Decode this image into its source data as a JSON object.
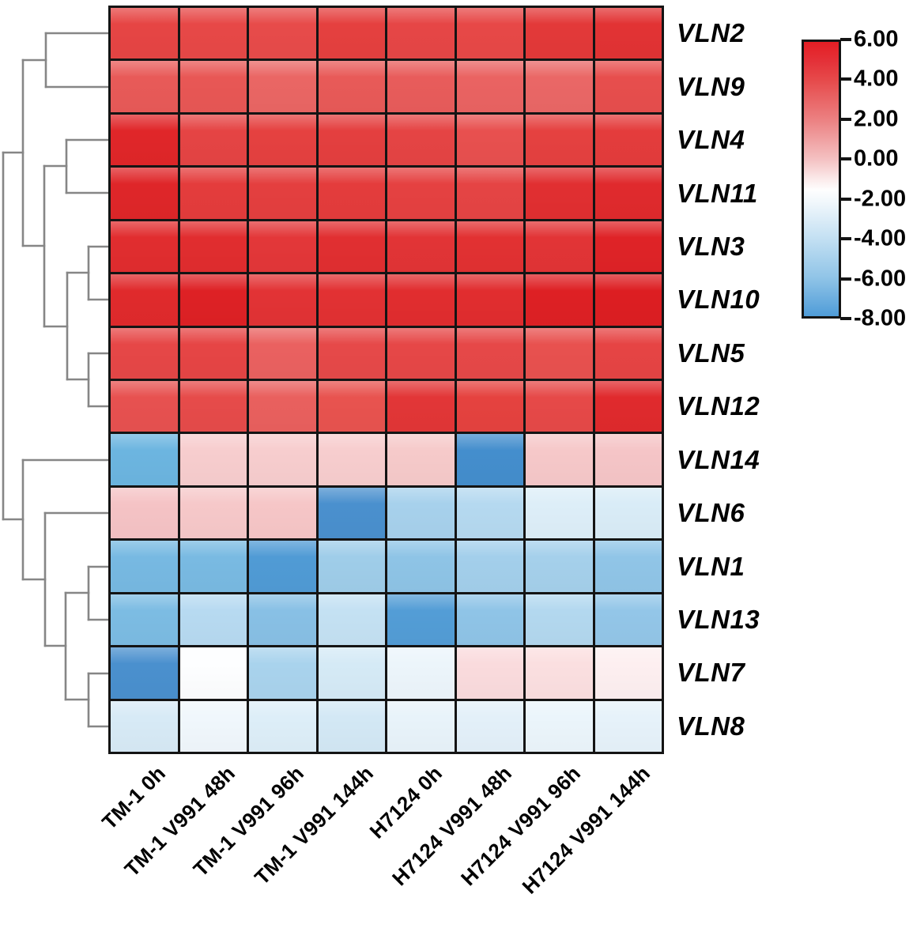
{
  "figure": {
    "background": "#ffffff",
    "grid_color": "#141414",
    "dendrogram_color": "#868686"
  },
  "chart_data": {
    "type": "heatmap",
    "title": "",
    "rows": [
      "VLN2",
      "VLN9",
      "VLN4",
      "VLN11",
      "VLN3",
      "VLN10",
      "VLN5",
      "VLN12",
      "VLN14",
      "VLN6",
      "VLN1",
      "VLN13",
      "VLN7",
      "VLN8"
    ],
    "columns": [
      "TM-1 0h",
      "TM-1 V991 48h",
      "TM-1 V991 96h",
      "TM-1 V991 144h",
      "H7124 0h",
      "H7124 V991 48h",
      "H7124 V991 96h",
      "H7124 V991 144h"
    ],
    "values": [
      [
        4.0,
        3.9,
        3.8,
        4.1,
        4.0,
        3.9,
        4.4,
        4.6
      ],
      [
        3.4,
        3.5,
        3.1,
        3.4,
        3.3,
        3.2,
        3.1,
        3.7
      ],
      [
        5.2,
        4.1,
        4.2,
        4.2,
        4.1,
        3.7,
        4.2,
        4.3
      ],
      [
        5.2,
        4.3,
        4.2,
        4.3,
        4.2,
        4.1,
        4.9,
        5.0
      ],
      [
        4.9,
        4.9,
        4.5,
        4.9,
        4.7,
        4.8,
        4.7,
        5.3
      ],
      [
        5.0,
        5.4,
        4.6,
        4.8,
        4.9,
        4.9,
        5.4,
        5.5
      ],
      [
        3.8,
        4.0,
        3.2,
        3.8,
        3.8,
        3.8,
        3.6,
        4.0
      ],
      [
        3.6,
        3.8,
        3.3,
        3.6,
        4.4,
        4.1,
        3.9,
        5.0
      ],
      [
        -6.6,
        0.2,
        0.1,
        0.0,
        0.1,
        -7.8,
        0.3,
        0.4
      ],
      [
        0.4,
        0.2,
        0.3,
        -7.8,
        -4.5,
        -4.0,
        -2.6,
        -2.8
      ],
      [
        -6.0,
        -5.9,
        -7.4,
        -4.8,
        -5.3,
        -4.6,
        -4.5,
        -5.2
      ],
      [
        -5.8,
        -3.9,
        -5.5,
        -3.5,
        -7.2,
        -5.3,
        -4.1,
        -5.1
      ],
      [
        -7.8,
        -1.5,
        -4.4,
        -2.9,
        -1.9,
        -0.8,
        -0.7,
        -1.2
      ],
      [
        -2.9,
        -1.8,
        -2.6,
        -3.0,
        -2.1,
        -2.3,
        -1.9,
        -2.2
      ]
    ],
    "cell_colors": [
      [
        "#e64544",
        "#e74847",
        "#e74b4a",
        "#e5403f",
        "#e64646",
        "#e74847",
        "#e33939",
        "#e23334"
      ],
      [
        "#e85a58",
        "#e85755",
        "#ea6664",
        "#e85a58",
        "#e85c5b",
        "#ea6362",
        "#ea6766",
        "#e74e4d"
      ],
      [
        "#e02629",
        "#e54444",
        "#e54140",
        "#e43f3f",
        "#e54444",
        "#e8504f",
        "#e54140",
        "#e43c3c"
      ],
      [
        "#df2629",
        "#e43c3c",
        "#e43f3f",
        "#e43c3c",
        "#e54141",
        "#e54444",
        "#e12f31",
        "#e02a2d"
      ],
      [
        "#e12d2f",
        "#e12d2f",
        "#e33739",
        "#e12f31",
        "#e23436",
        "#e23132",
        "#e23436",
        "#df2327"
      ],
      [
        "#e02a2c",
        "#de2125",
        "#e23335",
        "#e23133",
        "#e12d2f",
        "#e12d2f",
        "#de2024",
        "#dd1e22"
      ],
      [
        "#e64747",
        "#e64545",
        "#ea6160",
        "#e64949",
        "#e64747",
        "#e64848",
        "#e8514f",
        "#e64444"
      ],
      [
        "#e75150",
        "#e64b4a",
        "#e9605e",
        "#e8534f",
        "#e23637",
        "#e5423f",
        "#e64948",
        "#e02a2d"
      ],
      [
        "#6cb5e0",
        "#f7cdce",
        "#f7cdce",
        "#f7cdce",
        "#f6caca",
        "#448ecd",
        "#f6c8c9",
        "#f5c5c7"
      ],
      [
        "#f5c3c5",
        "#f6c8c9",
        "#f6c6c7",
        "#4a90ce",
        "#a7d1ec",
        "#b5d9f0",
        "#ddeef8",
        "#d9ecf7"
      ],
      [
        "#77b9e2",
        "#79bae2",
        "#509bd5",
        "#9fcde9",
        "#8ec4e6",
        "#a3cfeb",
        "#a5d0eb",
        "#90c5e7"
      ],
      [
        "#7cbce3",
        "#b7daf1",
        "#88c0e5",
        "#c4e1f3",
        "#539dd6",
        "#8fc4e7",
        "#b3d8ef",
        "#93c6e8"
      ],
      [
        "#4a90ce",
        "#fdfeff",
        "#a9d3ed",
        "#d5eaf6",
        "#ecf5fb",
        "#fadbdd",
        "#fbdfe0",
        "#fdeff0"
      ],
      [
        "#d7eaf6",
        "#f0f7fc",
        "#ddeef8",
        "#d3e8f5",
        "#e8f3fa",
        "#e3f0f9",
        "#ebf5fb",
        "#e6f2fa"
      ]
    ],
    "color_scale": {
      "min": -8,
      "max": 6,
      "tick_labels": [
        "6.00",
        "4.00",
        "2.00",
        "0.00",
        "-2.00",
        "-4.00",
        "-6.00",
        "-8.00"
      ],
      "gradient_stops": [
        {
          "pos": 0,
          "color": "#e31e24"
        },
        {
          "pos": 7,
          "color": "#e43138"
        },
        {
          "pos": 14,
          "color": "#e64a4b"
        },
        {
          "pos": 29,
          "color": "#ec8384"
        },
        {
          "pos": 43,
          "color": "#f4c2c3"
        },
        {
          "pos": 50,
          "color": "#fbeaea"
        },
        {
          "pos": 54,
          "color": "#fefefe"
        },
        {
          "pos": 58,
          "color": "#f2f8fc"
        },
        {
          "pos": 71,
          "color": "#c5e1f3"
        },
        {
          "pos": 86,
          "color": "#90c4e7"
        },
        {
          "pos": 100,
          "color": "#4f9cd8"
        }
      ]
    },
    "row_dendrogram": {
      "topology": "(((VLN2,VLN9),((VLN4,VLN11),((VLN3,VLN10),(VLN5,VLN12)))),(VLN14,(VLN6,((VLN1,VLN13),(VLN7,VLN8)))))",
      "segments": [
        [
          137,
          42,
          58,
          42
        ],
        [
          137,
          110,
          58,
          110
        ],
        [
          58,
          42,
          58,
          110
        ],
        [
          58,
          76,
          29,
          76
        ],
        [
          137,
          177,
          84,
          177
        ],
        [
          137,
          244,
          84,
          244
        ],
        [
          84,
          177,
          84,
          244
        ],
        [
          84,
          210,
          56,
          210
        ],
        [
          137,
          312,
          112,
          312
        ],
        [
          137,
          379,
          112,
          379
        ],
        [
          112,
          312,
          112,
          379
        ],
        [
          112,
          345,
          85,
          345
        ],
        [
          137,
          447,
          112,
          447
        ],
        [
          137,
          514,
          112,
          514
        ],
        [
          112,
          447,
          112,
          514
        ],
        [
          112,
          480,
          85,
          480
        ],
        [
          85,
          345,
          85,
          480
        ],
        [
          85,
          413,
          56,
          413
        ],
        [
          56,
          210,
          56,
          413
        ],
        [
          56,
          311,
          29,
          311
        ],
        [
          29,
          76,
          29,
          311
        ],
        [
          29,
          193,
          4,
          193
        ],
        [
          137,
          582,
          29,
          582
        ],
        [
          137,
          649,
          57,
          649
        ],
        [
          137,
          717,
          112,
          717
        ],
        [
          137,
          784,
          112,
          784
        ],
        [
          112,
          717,
          112,
          784
        ],
        [
          112,
          750,
          83,
          750
        ],
        [
          137,
          852,
          112,
          852
        ],
        [
          137,
          919,
          112,
          919
        ],
        [
          112,
          852,
          112,
          919
        ],
        [
          112,
          885,
          83,
          885
        ],
        [
          83,
          750,
          83,
          885
        ],
        [
          83,
          817,
          57,
          817
        ],
        [
          57,
          649,
          57,
          817
        ],
        [
          57,
          733,
          29,
          733
        ],
        [
          29,
          582,
          29,
          733
        ],
        [
          29,
          657,
          4,
          657
        ],
        [
          4,
          193,
          4,
          657
        ]
      ]
    }
  }
}
